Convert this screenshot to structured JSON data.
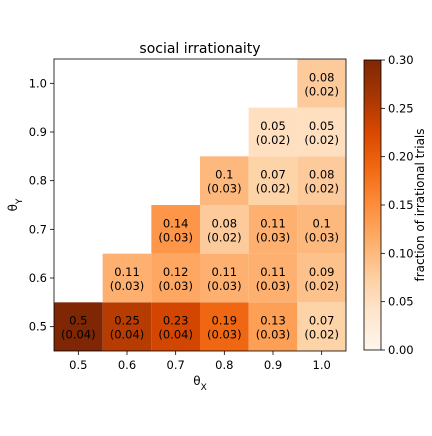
{
  "chart_data": {
    "type": "heatmap",
    "title": "social irrationaity",
    "xlabel": "θ_X",
    "ylabel": "θ_Y",
    "x_categories": [
      "0.5",
      "0.6",
      "0.7",
      "0.8",
      "0.9",
      "1.0"
    ],
    "y_categories": [
      "0.5",
      "0.6",
      "0.7",
      "0.8",
      "0.9",
      "1.0"
    ],
    "cells": [
      {
        "x": "0.5",
        "y": "0.5",
        "value": 0.5,
        "value_label": "0.5",
        "err_label": "(0.04)"
      },
      {
        "x": "0.6",
        "y": "0.5",
        "value": 0.25,
        "value_label": "0.25",
        "err_label": "(0.04)"
      },
      {
        "x": "0.7",
        "y": "0.5",
        "value": 0.23,
        "value_label": "0.23",
        "err_label": "(0.04)"
      },
      {
        "x": "0.8",
        "y": "0.5",
        "value": 0.19,
        "value_label": "0.19",
        "err_label": "(0.03)"
      },
      {
        "x": "0.9",
        "y": "0.5",
        "value": 0.13,
        "value_label": "0.13",
        "err_label": "(0.03)"
      },
      {
        "x": "1.0",
        "y": "0.5",
        "value": 0.07,
        "value_label": "0.07",
        "err_label": "(0.02)"
      },
      {
        "x": "0.6",
        "y": "0.6",
        "value": 0.11,
        "value_label": "0.11",
        "err_label": "(0.03)"
      },
      {
        "x": "0.7",
        "y": "0.6",
        "value": 0.12,
        "value_label": "0.12",
        "err_label": "(0.03)"
      },
      {
        "x": "0.8",
        "y": "0.6",
        "value": 0.11,
        "value_label": "0.11",
        "err_label": "(0.03)"
      },
      {
        "x": "0.9",
        "y": "0.6",
        "value": 0.11,
        "value_label": "0.11",
        "err_label": "(0.03)"
      },
      {
        "x": "1.0",
        "y": "0.6",
        "value": 0.09,
        "value_label": "0.09",
        "err_label": "(0.02)"
      },
      {
        "x": "0.7",
        "y": "0.7",
        "value": 0.14,
        "value_label": "0.14",
        "err_label": "(0.03)"
      },
      {
        "x": "0.8",
        "y": "0.7",
        "value": 0.08,
        "value_label": "0.08",
        "err_label": "(0.02)"
      },
      {
        "x": "0.9",
        "y": "0.7",
        "value": 0.11,
        "value_label": "0.11",
        "err_label": "(0.03)"
      },
      {
        "x": "1.0",
        "y": "0.7",
        "value": 0.1,
        "value_label": "0.1",
        "err_label": "(0.03)"
      },
      {
        "x": "0.8",
        "y": "0.8",
        "value": 0.1,
        "value_label": "0.1",
        "err_label": "(0.03)"
      },
      {
        "x": "0.9",
        "y": "0.8",
        "value": 0.07,
        "value_label": "0.07",
        "err_label": "(0.02)"
      },
      {
        "x": "1.0",
        "y": "0.8",
        "value": 0.08,
        "value_label": "0.08",
        "err_label": "(0.02)"
      },
      {
        "x": "0.9",
        "y": "0.9",
        "value": 0.05,
        "value_label": "0.05",
        "err_label": "(0.02)"
      },
      {
        "x": "1.0",
        "y": "0.9",
        "value": 0.05,
        "value_label": "0.05",
        "err_label": "(0.02)"
      },
      {
        "x": "1.0",
        "y": "1.0",
        "value": 0.08,
        "value_label": "0.08",
        "err_label": "(0.02)"
      }
    ],
    "colorbar": {
      "label": "fraction of irrational trials",
      "range": [
        0.0,
        0.3
      ],
      "ticks": [
        {
          "value": 0.0,
          "label": "0.00"
        },
        {
          "value": 0.05,
          "label": "0.05"
        },
        {
          "value": 0.1,
          "label": "0.10"
        },
        {
          "value": 0.15,
          "label": "0.15"
        },
        {
          "value": 0.2,
          "label": "0.20"
        },
        {
          "value": 0.25,
          "label": "0.25"
        },
        {
          "value": 0.3,
          "label": "0.30"
        }
      ],
      "colormap": "Oranges",
      "color_stops": [
        "#fff5eb",
        "#fee6ce",
        "#fdd0a2",
        "#fdae6b",
        "#fd8d3c",
        "#f16913",
        "#d94801",
        "#a63603",
        "#7f2704"
      ]
    },
    "grid": false,
    "legend": "colorbar-right"
  }
}
